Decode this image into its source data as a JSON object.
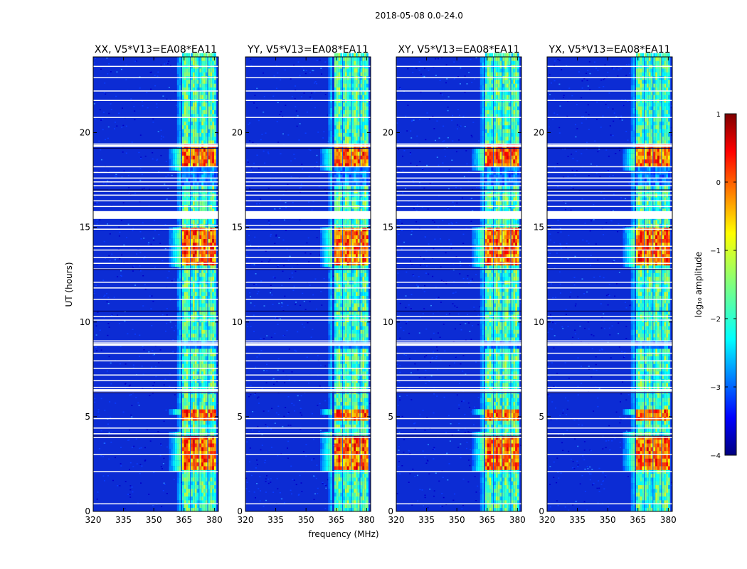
{
  "figure": {
    "suptitle": "2018-05-08 0.0-24.0"
  },
  "chart_data": {
    "type": "heatmap",
    "panels": [
      {
        "title": "XX, V5*V13=EA08*EA11",
        "onset_mhz": 363.5
      },
      {
        "title": "YY, V5*V13=EA08*EA11",
        "onset_mhz": 363.0
      },
      {
        "title": "XY, V5*V13=EA08*EA11",
        "onset_mhz": 363.5
      },
      {
        "title": "YX, V5*V13=EA08*EA11",
        "onset_mhz": 363.5
      }
    ],
    "xlabel": "frequency (MHz)",
    "ylabel": "UT (hours)",
    "xlim": [
      320,
      382
    ],
    "ylim": [
      0,
      24
    ],
    "xticks": [
      "320",
      "335",
      "350",
      "365",
      "380"
    ],
    "xtick_values": [
      320,
      335,
      350,
      365,
      380
    ],
    "yticks": [
      "0",
      "5",
      "10",
      "15",
      "20"
    ],
    "ytick_values": [
      0,
      5,
      10,
      15,
      20
    ],
    "band_channels_mhz": [
      [
        364,
        368
      ],
      [
        368.3,
        372.3
      ],
      [
        372.6,
        376.6
      ],
      [
        376.9,
        380.9
      ]
    ],
    "strong_time_ranges_hours": [
      [
        2.0,
        3.9
      ],
      [
        12.8,
        14.8
      ],
      [
        18.0,
        19.2
      ],
      [
        4.8,
        5.3
      ]
    ],
    "moderate_time_ranges_hours": [
      [
        0.0,
        2.0
      ],
      [
        4.0,
        6.3
      ],
      [
        6.4,
        8.6
      ],
      [
        9.0,
        12.8
      ],
      [
        14.8,
        17.0
      ],
      [
        19.3,
        24.0
      ]
    ],
    "flagged_rows_hours": [
      0.4,
      2.1,
      3.0,
      3.9,
      4.1,
      4.4,
      4.9,
      6.3,
      6.4,
      6.55,
      6.9,
      7.2,
      7.55,
      7.95,
      8.35,
      8.8,
      8.9,
      9.0,
      10.1,
      10.3,
      11.2,
      11.8,
      12.1,
      12.8,
      13.1,
      13.4,
      13.8,
      14.0,
      14.9,
      15.1,
      15.5,
      15.6,
      15.7,
      15.8,
      16.1,
      16.4,
      16.7,
      16.9,
      17.2,
      17.4,
      17.6,
      17.9,
      18.2,
      19.3,
      19.4,
      20.8,
      21.7,
      22.2,
      22.9,
      23.5
    ],
    "colorbar": {
      "label": "log₁₀ amplitude",
      "range": [
        -4,
        1
      ],
      "ticks": [
        "1",
        "0",
        "−1",
        "−2",
        "−3",
        "−4"
      ],
      "tick_values": [
        1,
        0,
        -1,
        -2,
        -3,
        -4
      ],
      "colormap": [
        "#00007f",
        "#0000ff",
        "#007fff",
        "#00ffff",
        "#7fff7f",
        "#ffff00",
        "#ff7f00",
        "#ff0000",
        "#7f0000"
      ]
    }
  }
}
